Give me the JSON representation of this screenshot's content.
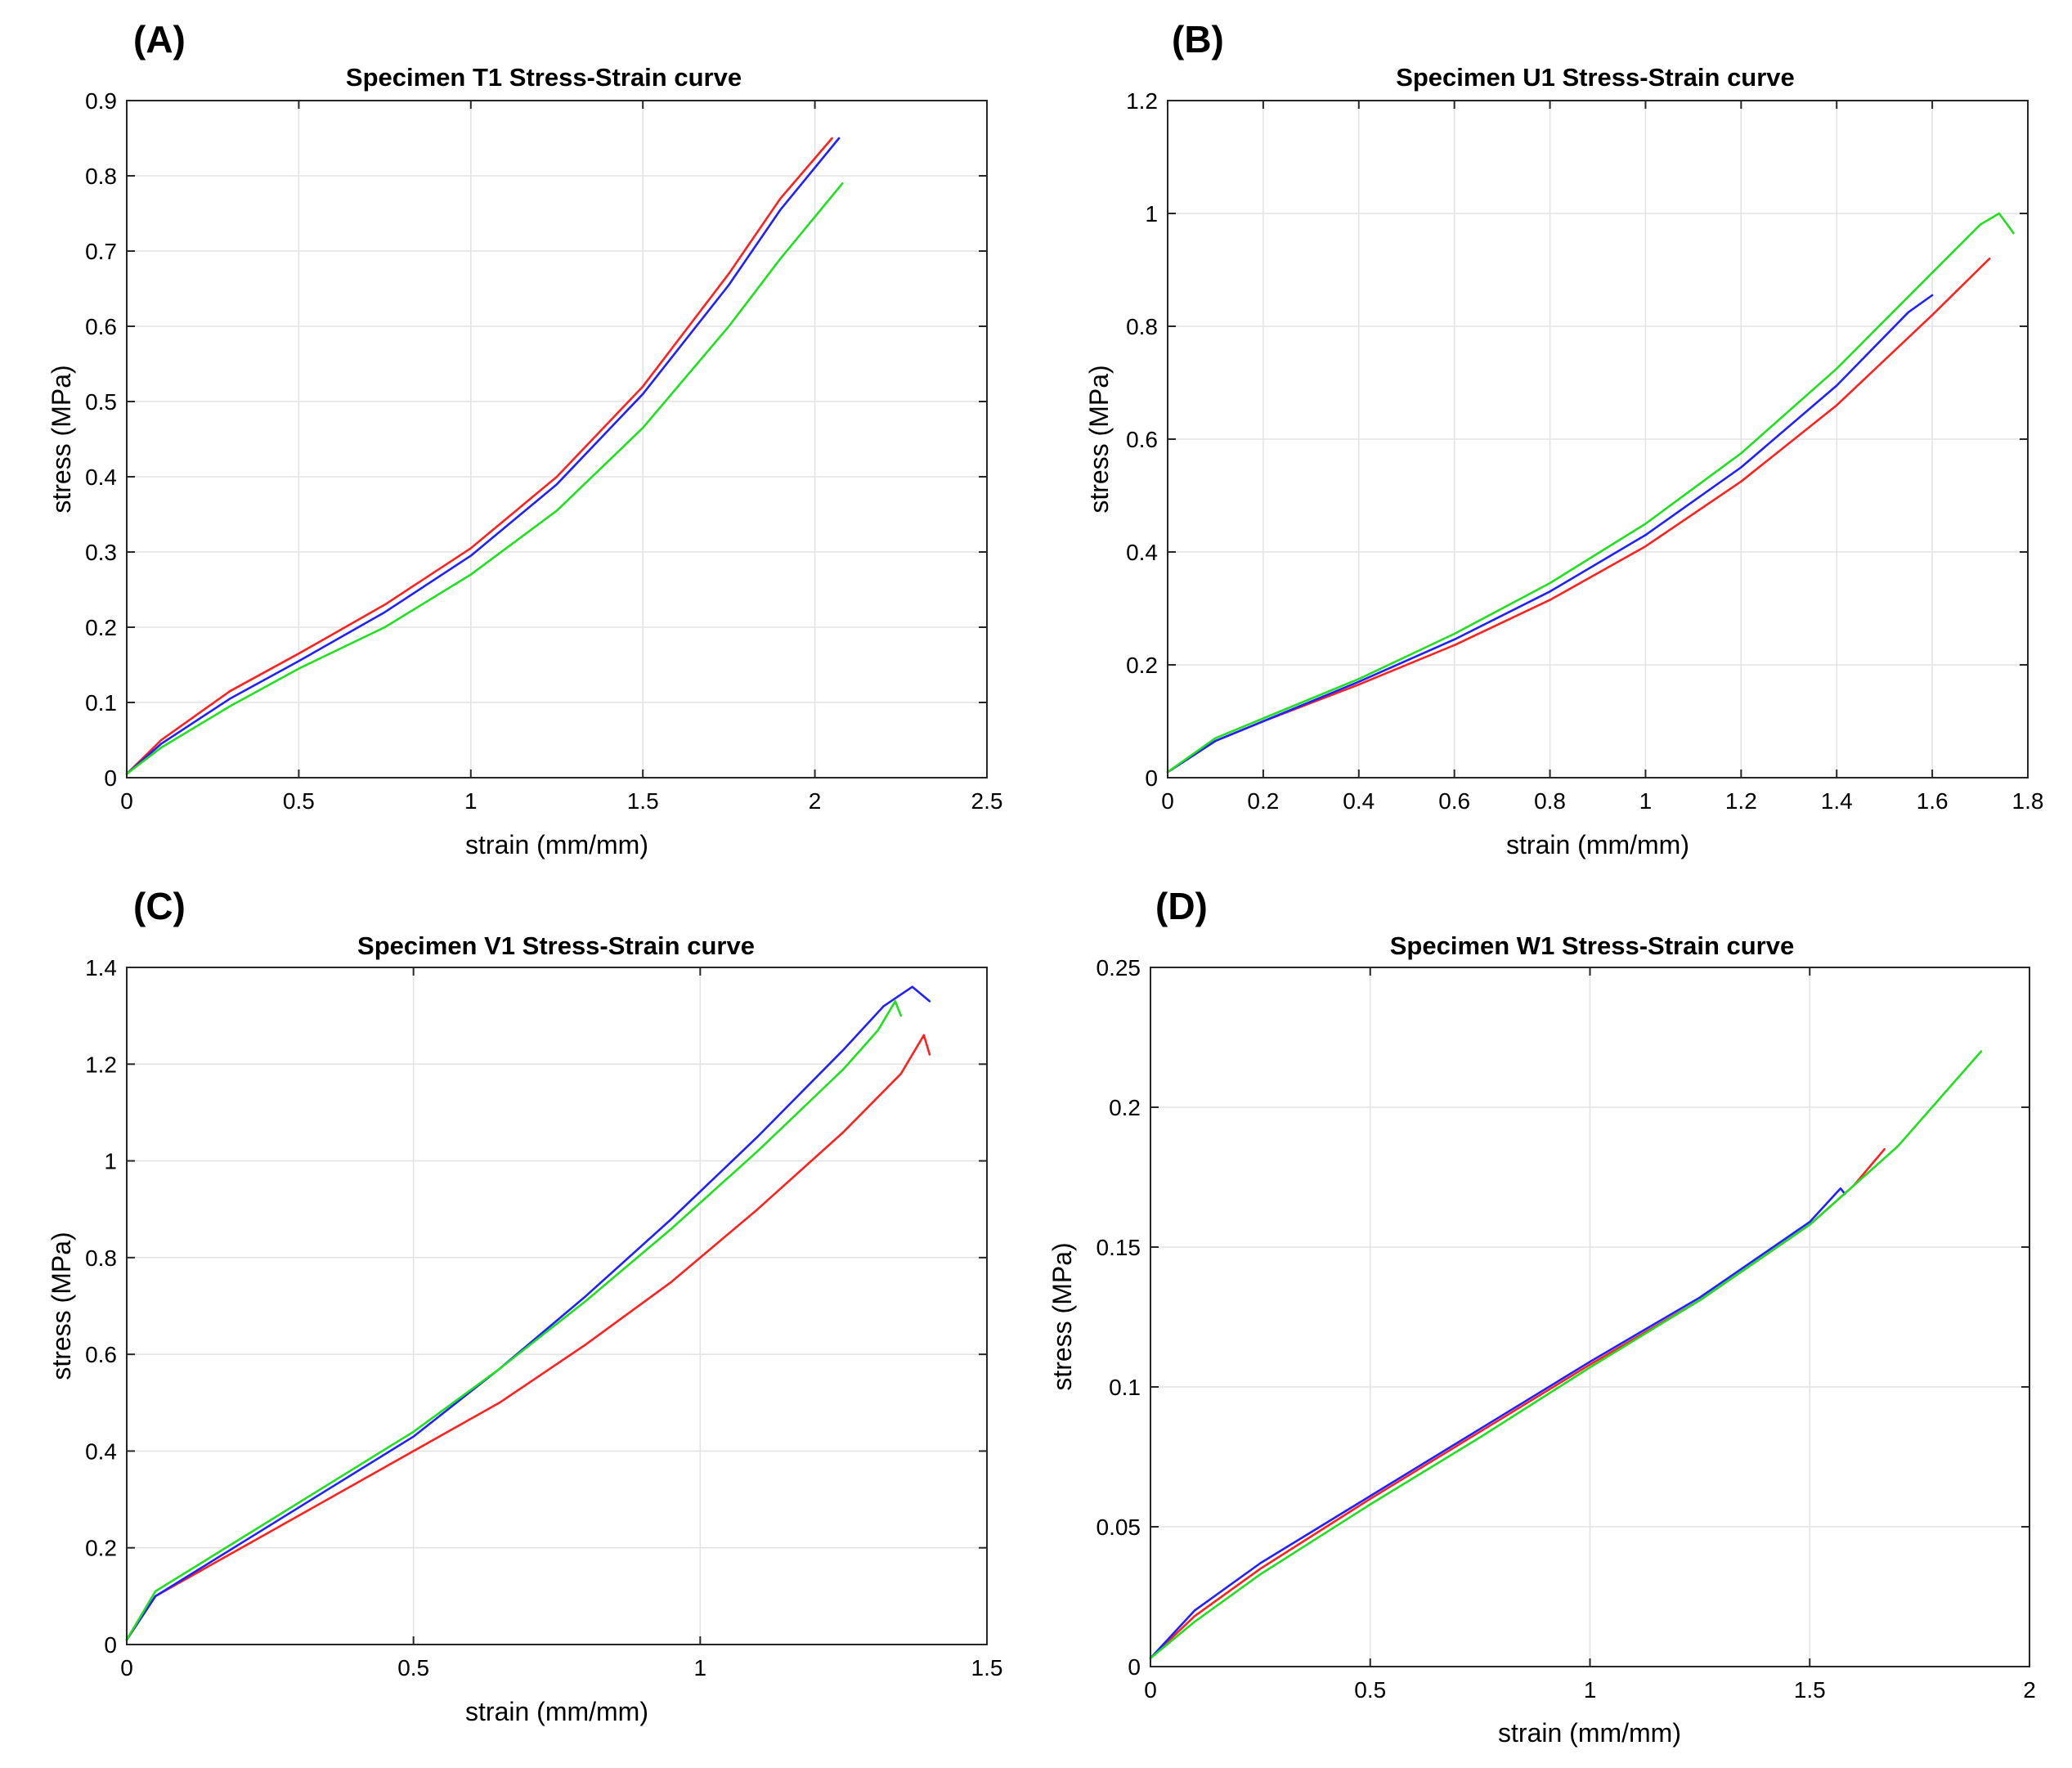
{
  "colors": {
    "red": "#ff2020",
    "blue": "#2020ff",
    "green": "#20e020"
  },
  "chart_data": [
    {
      "panel": "(A)",
      "type": "line",
      "title": "Specimen T1 Stress-Strain curve",
      "xlabel": "strain (mm/mm)",
      "ylabel": "stress (MPa)",
      "xlim": [
        0,
        2.5
      ],
      "ylim": [
        0,
        0.9
      ],
      "xticks": [
        0,
        0.5,
        1,
        1.5,
        2,
        2.5
      ],
      "xtick_labels": [
        "0",
        "0.5",
        "1",
        "1.5",
        "2",
        "2.5"
      ],
      "yticks": [
        0,
        0.1,
        0.2,
        0.3,
        0.4,
        0.5,
        0.6,
        0.7,
        0.8,
        0.9
      ],
      "ytick_labels": [
        "0",
        "0.1",
        "0.2",
        "0.3",
        "0.4",
        "0.5",
        "0.6",
        "0.7",
        "0.8",
        "0.9"
      ],
      "grid": true,
      "series": [
        {
          "name": "red",
          "color": "#ff2020",
          "x": [
            0,
            0.1,
            0.3,
            0.5,
            0.75,
            1.0,
            1.25,
            1.5,
            1.75,
            1.9,
            2.05
          ],
          "y": [
            0.005,
            0.05,
            0.115,
            0.165,
            0.23,
            0.305,
            0.4,
            0.52,
            0.67,
            0.77,
            0.85
          ]
        },
        {
          "name": "blue",
          "color": "#2020ff",
          "x": [
            0,
            0.1,
            0.3,
            0.5,
            0.75,
            1.0,
            1.25,
            1.5,
            1.75,
            1.9,
            2.07
          ],
          "y": [
            0.005,
            0.045,
            0.105,
            0.155,
            0.22,
            0.295,
            0.39,
            0.51,
            0.655,
            0.755,
            0.85
          ]
        },
        {
          "name": "green",
          "color": "#20e020",
          "x": [
            0,
            0.1,
            0.3,
            0.5,
            0.75,
            1.0,
            1.25,
            1.5,
            1.75,
            1.9,
            2.08
          ],
          "y": [
            0.005,
            0.04,
            0.095,
            0.145,
            0.2,
            0.27,
            0.355,
            0.465,
            0.6,
            0.69,
            0.79
          ]
        }
      ]
    },
    {
      "panel": "(B)",
      "type": "line",
      "title": "Specimen U1 Stress-Strain curve",
      "xlabel": "strain (mm/mm)",
      "ylabel": "stress (MPa)",
      "xlim": [
        0,
        1.8
      ],
      "ylim": [
        0,
        1.2
      ],
      "xticks": [
        0,
        0.2,
        0.4,
        0.6,
        0.8,
        1,
        1.2,
        1.4,
        1.6,
        1.8
      ],
      "xtick_labels": [
        "0",
        "0.2",
        "0.4",
        "0.6",
        "0.8",
        "1",
        "1.2",
        "1.4",
        "1.6",
        "1.8"
      ],
      "yticks": [
        0,
        0.2,
        0.4,
        0.6,
        0.8,
        1,
        1.2
      ],
      "ytick_labels": [
        "0",
        "0.2",
        "0.4",
        "0.6",
        "0.8",
        "1",
        "1.2"
      ],
      "grid": true,
      "series": [
        {
          "name": "red",
          "color": "#ff2020",
          "x": [
            0,
            0.1,
            0.2,
            0.4,
            0.6,
            0.8,
            1.0,
            1.2,
            1.4,
            1.6,
            1.72
          ],
          "y": [
            0.01,
            0.065,
            0.1,
            0.165,
            0.235,
            0.315,
            0.41,
            0.525,
            0.66,
            0.82,
            0.92
          ]
        },
        {
          "name": "blue",
          "color": "#2020ff",
          "x": [
            0,
            0.1,
            0.2,
            0.4,
            0.6,
            0.8,
            1.0,
            1.2,
            1.4,
            1.55,
            1.6
          ],
          "y": [
            0.01,
            0.065,
            0.1,
            0.17,
            0.245,
            0.33,
            0.43,
            0.55,
            0.695,
            0.825,
            0.855
          ]
        },
        {
          "name": "green",
          "color": "#20e020",
          "x": [
            0,
            0.1,
            0.2,
            0.4,
            0.6,
            0.8,
            1.0,
            1.2,
            1.4,
            1.6,
            1.7,
            1.74,
            1.77
          ],
          "y": [
            0.01,
            0.07,
            0.105,
            0.175,
            0.255,
            0.345,
            0.45,
            0.575,
            0.725,
            0.895,
            0.98,
            1.0,
            0.965
          ]
        }
      ]
    },
    {
      "panel": "(C)",
      "type": "line",
      "title": "Specimen V1 Stress-Strain curve",
      "xlabel": "strain (mm/mm)",
      "ylabel": "stress (MPa)",
      "xlim": [
        0,
        1.5
      ],
      "ylim": [
        0,
        1.4
      ],
      "xticks": [
        0,
        0.5,
        1,
        1.5
      ],
      "xtick_labels": [
        "0",
        "0.5",
        "1",
        "1.5"
      ],
      "yticks": [
        0,
        0.2,
        0.4,
        0.6,
        0.8,
        1,
        1.2,
        1.4
      ],
      "ytick_labels": [
        "0",
        "0.2",
        "0.4",
        "0.6",
        "0.8",
        "1",
        "1.2",
        "1.4"
      ],
      "grid": true,
      "series": [
        {
          "name": "red",
          "color": "#ff2020",
          "x": [
            0,
            0.05,
            0.2,
            0.35,
            0.5,
            0.65,
            0.8,
            0.95,
            1.1,
            1.25,
            1.35,
            1.39,
            1.4
          ],
          "y": [
            0.01,
            0.1,
            0.2,
            0.3,
            0.4,
            0.5,
            0.62,
            0.75,
            0.9,
            1.06,
            1.18,
            1.26,
            1.22
          ]
        },
        {
          "name": "blue",
          "color": "#2020ff",
          "x": [
            0,
            0.05,
            0.2,
            0.35,
            0.5,
            0.65,
            0.8,
            0.95,
            1.1,
            1.25,
            1.32,
            1.37,
            1.4
          ],
          "y": [
            0.01,
            0.1,
            0.21,
            0.32,
            0.43,
            0.57,
            0.72,
            0.88,
            1.05,
            1.23,
            1.32,
            1.36,
            1.33
          ]
        },
        {
          "name": "green",
          "color": "#20e020",
          "x": [
            0,
            0.05,
            0.2,
            0.35,
            0.5,
            0.65,
            0.8,
            0.95,
            1.1,
            1.25,
            1.31,
            1.34,
            1.35
          ],
          "y": [
            0.01,
            0.11,
            0.22,
            0.33,
            0.44,
            0.57,
            0.71,
            0.86,
            1.02,
            1.19,
            1.27,
            1.33,
            1.3
          ]
        }
      ]
    },
    {
      "panel": "(D)",
      "type": "line",
      "title": "Specimen W1 Stress-Strain curve",
      "xlabel": "strain (mm/mm)",
      "ylabel": "stress (MPa)",
      "xlim": [
        0,
        2
      ],
      "ylim": [
        0,
        0.25
      ],
      "xticks": [
        0,
        0.5,
        1,
        1.5,
        2
      ],
      "xtick_labels": [
        "0",
        "0.5",
        "1",
        "1.5",
        "2"
      ],
      "yticks": [
        0,
        0.05,
        0.1,
        0.15,
        0.2,
        0.25
      ],
      "ytick_labels": [
        "0",
        "0.05",
        "0.1",
        "0.15",
        "0.2",
        "0.25"
      ],
      "grid": true,
      "series": [
        {
          "name": "red",
          "color": "#ff2020",
          "x": [
            0,
            0.1,
            0.25,
            0.5,
            0.75,
            1.0,
            1.25,
            1.5,
            1.6,
            1.67
          ],
          "y": [
            0.003,
            0.018,
            0.035,
            0.06,
            0.084,
            0.108,
            0.131,
            0.158,
            0.172,
            0.185
          ]
        },
        {
          "name": "blue",
          "color": "#2020ff",
          "x": [
            0,
            0.1,
            0.25,
            0.5,
            0.75,
            1.0,
            1.25,
            1.5,
            1.57,
            1.58
          ],
          "y": [
            0.003,
            0.02,
            0.037,
            0.061,
            0.085,
            0.109,
            0.132,
            0.159,
            0.171,
            0.169
          ]
        },
        {
          "name": "green",
          "color": "#20e020",
          "x": [
            0,
            0.1,
            0.25,
            0.5,
            0.75,
            1.0,
            1.25,
            1.5,
            1.7,
            1.89
          ],
          "y": [
            0.003,
            0.016,
            0.033,
            0.058,
            0.082,
            0.107,
            0.131,
            0.158,
            0.186,
            0.22
          ]
        }
      ]
    }
  ]
}
